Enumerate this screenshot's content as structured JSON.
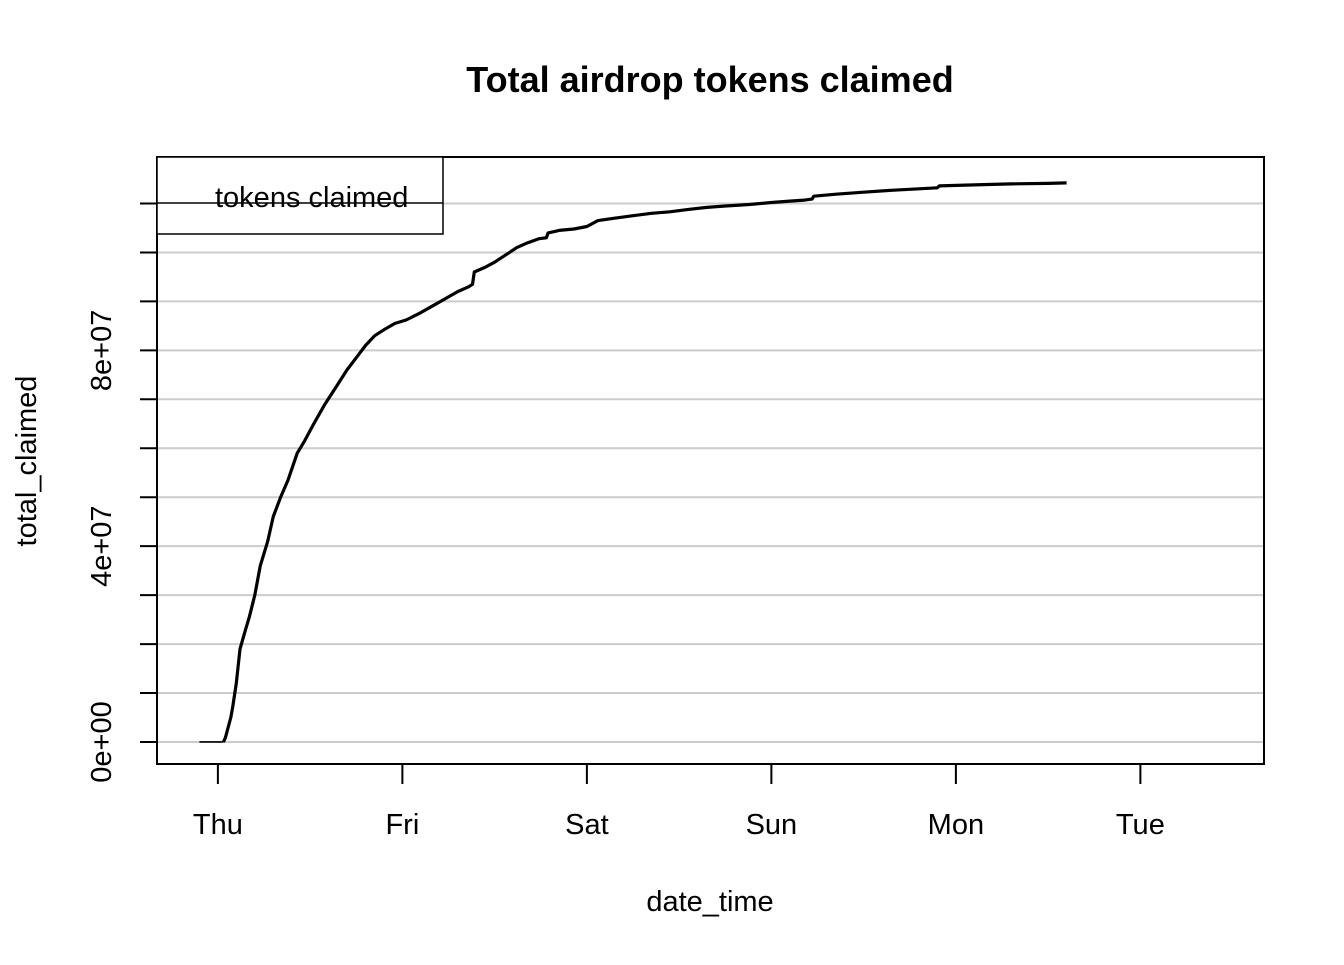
{
  "chart_data": {
    "type": "line",
    "title": "Total airdrop tokens claimed",
    "xlabel": "date_time",
    "ylabel": "total_claimed",
    "x_ticks": [
      "Thu",
      "Fri",
      "Sat",
      "Sun",
      "Mon",
      "Tue"
    ],
    "y_ticks": [
      "0e+00",
      "4e+07",
      "8e+07"
    ],
    "y_tick_values": [
      0,
      40000000,
      80000000
    ],
    "xlim": [
      -0.33,
      5.67
    ],
    "ylim": [
      -4500000,
      119500000
    ],
    "y_gridlines": [
      0,
      10000000,
      20000000,
      30000000,
      40000000,
      50000000,
      60000000,
      70000000,
      80000000,
      90000000,
      100000000,
      110000000
    ],
    "grid": "horizontal",
    "legend": {
      "position": "top-left",
      "entries": [
        "tokens claimed"
      ]
    },
    "series": [
      {
        "name": "tokens claimed",
        "x_unit": "days (0 = Thu)",
        "points": [
          [
            -0.1,
            0
          ],
          [
            0.03,
            0
          ],
          [
            0.04,
            800000
          ],
          [
            0.07,
            5000000
          ],
          [
            0.08,
            7000000
          ],
          [
            0.1,
            12000000
          ],
          [
            0.12,
            19000000
          ],
          [
            0.15,
            23000000
          ],
          [
            0.17,
            25500000
          ],
          [
            0.2,
            30000000
          ],
          [
            0.23,
            36000000
          ],
          [
            0.27,
            41000000
          ],
          [
            0.3,
            46000000
          ],
          [
            0.34,
            50000000
          ],
          [
            0.38,
            53500000
          ],
          [
            0.43,
            59000000
          ],
          [
            0.47,
            61500000
          ],
          [
            0.52,
            65000000
          ],
          [
            0.58,
            69000000
          ],
          [
            0.64,
            72500000
          ],
          [
            0.7,
            76000000
          ],
          [
            0.76,
            79000000
          ],
          [
            0.8,
            81000000
          ],
          [
            0.85,
            83000000
          ],
          [
            0.9,
            84200000
          ],
          [
            0.96,
            85500000
          ],
          [
            1.02,
            86200000
          ],
          [
            1.09,
            87500000
          ],
          [
            1.16,
            89000000
          ],
          [
            1.23,
            90500000
          ],
          [
            1.3,
            92000000
          ],
          [
            1.36,
            93000000
          ],
          [
            1.38,
            93500000
          ],
          [
            1.39,
            96000000
          ],
          [
            1.45,
            97000000
          ],
          [
            1.5,
            98000000
          ],
          [
            1.56,
            99500000
          ],
          [
            1.62,
            101000000
          ],
          [
            1.68,
            102000000
          ],
          [
            1.74,
            102800000
          ],
          [
            1.78,
            103000000
          ],
          [
            1.79,
            104000000
          ],
          [
            1.85,
            104500000
          ],
          [
            1.93,
            104800000
          ],
          [
            2.0,
            105300000
          ],
          [
            2.06,
            106500000
          ],
          [
            2.15,
            107000000
          ],
          [
            2.25,
            107500000
          ],
          [
            2.35,
            108000000
          ],
          [
            2.45,
            108300000
          ],
          [
            2.55,
            108800000
          ],
          [
            2.65,
            109200000
          ],
          [
            2.75,
            109500000
          ],
          [
            2.88,
            109800000
          ],
          [
            3.0,
            110200000
          ],
          [
            3.1,
            110500000
          ],
          [
            3.18,
            110700000
          ],
          [
            3.22,
            110900000
          ],
          [
            3.23,
            111500000
          ],
          [
            3.35,
            111900000
          ],
          [
            3.5,
            112300000
          ],
          [
            3.65,
            112700000
          ],
          [
            3.8,
            113000000
          ],
          [
            3.9,
            113200000
          ],
          [
            3.91,
            113600000
          ],
          [
            4.1,
            113800000
          ],
          [
            4.3,
            114000000
          ],
          [
            4.5,
            114100000
          ],
          [
            4.6,
            114200000
          ]
        ]
      }
    ]
  }
}
